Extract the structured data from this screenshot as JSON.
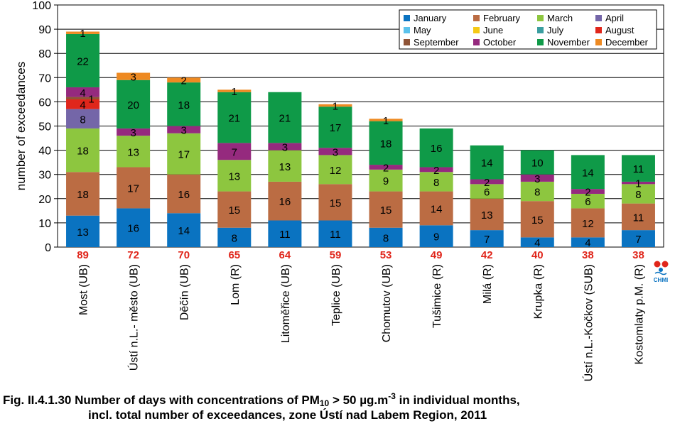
{
  "chart_data": {
    "type": "bar",
    "stacked": true,
    "ylabel": "number of exceedances",
    "ylim": [
      0,
      100
    ],
    "yticks": [
      0,
      10,
      20,
      30,
      40,
      50,
      60,
      70,
      80,
      90,
      100
    ],
    "grid": true,
    "legend_position": "top-right",
    "categories": [
      "Most (UB)",
      "Ústí n.L.- město (UB)",
      "Děčín (UB)",
      "Lom (R)",
      "Litoměřice (UB)",
      "Teplice (UB)",
      "Chomutov (UB)",
      "Tušimice (R)",
      "Milá (R)",
      "Krupka (R)",
      "Ústí n.L.-Kočkov (SUB)",
      "Kostomlaty p.M. (R)"
    ],
    "totals": [
      89,
      72,
      70,
      65,
      64,
      59,
      53,
      49,
      42,
      40,
      38,
      38
    ],
    "series": [
      {
        "name": "January",
        "color": "#0a73c1",
        "values": [
          13,
          16,
          14,
          8,
          11,
          11,
          8,
          9,
          7,
          4,
          4,
          7
        ]
      },
      {
        "name": "February",
        "color": "#bb6c43",
        "values": [
          18,
          17,
          16,
          15,
          16,
          15,
          15,
          14,
          13,
          15,
          12,
          11
        ]
      },
      {
        "name": "March",
        "color": "#8dc63f",
        "values": [
          18,
          13,
          17,
          13,
          13,
          12,
          9,
          8,
          6,
          8,
          6,
          8
        ]
      },
      {
        "name": "April",
        "color": "#7466a8",
        "values": [
          8,
          0,
          0,
          0,
          0,
          0,
          0,
          0,
          0,
          0,
          0,
          0
        ]
      },
      {
        "name": "May",
        "color": "#5bc2ec",
        "values": [
          0,
          0,
          0,
          0,
          0,
          0,
          0,
          0,
          0,
          0,
          0,
          0
        ]
      },
      {
        "name": "June",
        "color": "#f5c915",
        "values": [
          0,
          0,
          0,
          0,
          0,
          0,
          0,
          0,
          0,
          0,
          0,
          0
        ]
      },
      {
        "name": "July",
        "color": "#3a9ea0",
        "values": [
          0,
          0,
          0,
          0,
          0,
          0,
          0,
          0,
          0,
          0,
          0,
          0
        ]
      },
      {
        "name": "August",
        "color": "#e0261b",
        "values": [
          4,
          0,
          0,
          0,
          0,
          0,
          0,
          0,
          0,
          0,
          0,
          0
        ]
      },
      {
        "name": "September",
        "color": "#8f5437",
        "values": [
          1,
          0,
          0,
          0,
          0,
          0,
          0,
          0,
          0,
          0,
          0,
          0
        ]
      },
      {
        "name": "October",
        "color": "#952a7e",
        "values": [
          4,
          3,
          3,
          7,
          3,
          3,
          2,
          2,
          2,
          3,
          2,
          1
        ]
      },
      {
        "name": "November",
        "color": "#0f9a48",
        "values": [
          22,
          20,
          18,
          21,
          21,
          17,
          18,
          16,
          14,
          10,
          14,
          11
        ]
      },
      {
        "name": "December",
        "color": "#ee8a22",
        "values": [
          1,
          3,
          2,
          1,
          0,
          1,
          1,
          0,
          0,
          0,
          0,
          0
        ]
      }
    ]
  },
  "logo": {
    "text": "CHMI"
  },
  "caption": {
    "line1_pre": "Fig. II.4.1.30  Number of days with concentrations of PM",
    "line1_sub": "10",
    "line1_mid": " > 50 µg.m",
    "line1_sup": "-3",
    "line1_post": " in individual months,",
    "line2": "incl. total number of exceedances, zone Ústí nad Labem Region, 2011"
  }
}
